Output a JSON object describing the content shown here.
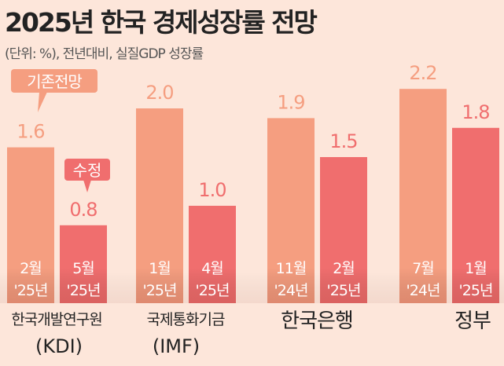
{
  "chart_data": {
    "type": "bar",
    "title": "2025년 한국 경제성장률 전망",
    "subtitle": "(단위: %), 전년대비, 실질GDP 성장률",
    "ylim": [
      0,
      2.4
    ],
    "grid": false,
    "legend_callouts": {
      "previous": "기존전망",
      "revised": "수정"
    },
    "colors": {
      "previous": "#f59e80",
      "revised": "#f06e6e",
      "background": "#fde6da"
    },
    "groups": [
      {
        "name": "한국개발연구원",
        "name2": "(KDI)",
        "bars": [
          {
            "series": "previous",
            "value": 1.6,
            "label": "1.6",
            "month": "2월",
            "year": "'25년"
          },
          {
            "series": "revised",
            "value": 0.8,
            "label": "0.8",
            "month": "5월",
            "year": "'25년"
          }
        ]
      },
      {
        "name": "국제통화기금",
        "name2": "(IMF)",
        "bars": [
          {
            "series": "previous",
            "value": 2.0,
            "label": "2.0",
            "month": "1월",
            "year": "'25년"
          },
          {
            "series": "revised",
            "value": 1.0,
            "label": "1.0",
            "month": "4월",
            "year": "'25년"
          }
        ]
      },
      {
        "name": "한국은행",
        "name2": "",
        "bars": [
          {
            "series": "previous",
            "value": 1.9,
            "label": "1.9",
            "month": "11월",
            "year": "'24년"
          },
          {
            "series": "revised",
            "value": 1.5,
            "label": "1.5",
            "month": "2월",
            "year": "'25년"
          }
        ]
      },
      {
        "name": "정부",
        "name2": "",
        "bars": [
          {
            "series": "previous",
            "value": 2.2,
            "label": "2.2",
            "month": "7월",
            "year": "'24년"
          },
          {
            "series": "revised",
            "value": 1.8,
            "label": "1.8",
            "month": "1월",
            "year": "'25년"
          }
        ]
      }
    ]
  }
}
